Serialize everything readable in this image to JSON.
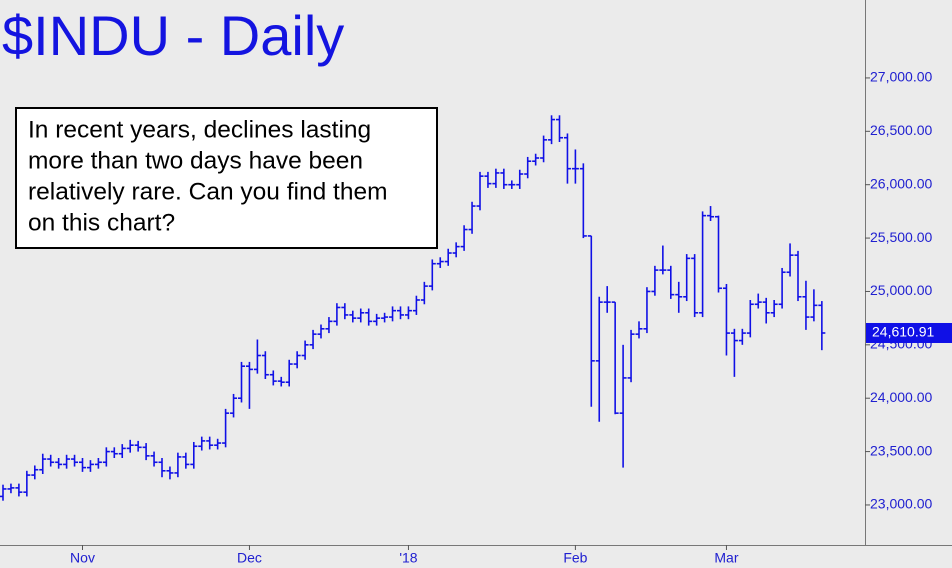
{
  "chart_data": {
    "type": "ohlc",
    "title": "$INDU - Daily",
    "annotation_lines": [
      "In recent years, declines lasting",
      "more than two days have been",
      "relatively rare. Can you find them",
      "on this chart?"
    ],
    "color": "#1010e6",
    "categories": [
      null,
      null,
      null,
      null,
      null,
      null,
      null,
      null,
      null,
      null,
      "Nov",
      null,
      null,
      null,
      null,
      null,
      null,
      null,
      null,
      null,
      null,
      null,
      null,
      null,
      null,
      null,
      null,
      null,
      null,
      null,
      null,
      "Dec",
      null,
      null,
      null,
      null,
      null,
      null,
      null,
      null,
      null,
      null,
      null,
      null,
      null,
      null,
      null,
      null,
      null,
      null,
      null,
      "'18",
      null,
      null,
      null,
      null,
      null,
      null,
      null,
      null,
      null,
      null,
      null,
      null,
      null,
      null,
      null,
      null,
      null,
      null,
      null,
      null,
      "Feb",
      null,
      null,
      null,
      null,
      null,
      null,
      null,
      null,
      null,
      null,
      null,
      null,
      null,
      null,
      null,
      null,
      null,
      null,
      "Mar",
      null,
      null,
      null,
      null,
      null,
      null,
      null,
      null,
      null,
      null,
      null,
      null
    ],
    "open": [
      23080,
      23150,
      23160,
      23120,
      23280,
      23330,
      23430,
      23400,
      23380,
      23430,
      23400,
      23350,
      23380,
      23400,
      23500,
      23480,
      23530,
      23560,
      23540,
      23460,
      23400,
      23320,
      23300,
      23450,
      23380,
      23550,
      23600,
      23560,
      23580,
      23860,
      24000,
      24300,
      24270,
      24400,
      24220,
      24160,
      24150,
      24320,
      24400,
      24500,
      24600,
      24650,
      24720,
      24850,
      24780,
      24750,
      24800,
      24720,
      24750,
      24760,
      24820,
      24780,
      24820,
      24920,
      25050,
      25260,
      25280,
      25360,
      25420,
      25580,
      25800,
      26080,
      26010,
      26110,
      26000,
      26000,
      26100,
      26220,
      26250,
      26420,
      26610,
      26440,
      26150,
      26150,
      25520,
      24350,
      24900,
      24900,
      23860,
      24190,
      24600,
      24650,
      25000,
      25200,
      25200,
      24970,
      24950,
      25310,
      24800,
      25710,
      25700,
      25030,
      24610,
      24540,
      24610,
      24880,
      24900,
      24800,
      24880,
      25180,
      25340,
      24950,
      24760,
      24870
    ],
    "high": [
      23190,
      23200,
      23200,
      23320,
      23370,
      23480,
      23470,
      23440,
      23470,
      23470,
      23440,
      23420,
      23440,
      23540,
      23540,
      23570,
      23610,
      23600,
      23580,
      23500,
      23440,
      23360,
      23490,
      23490,
      23590,
      23640,
      23640,
      23620,
      23900,
      24040,
      24340,
      24340,
      24550,
      24440,
      24260,
      24200,
      24360,
      24440,
      24540,
      24640,
      24690,
      24760,
      24890,
      24890,
      24820,
      24840,
      24840,
      24790,
      24800,
      24860,
      24860,
      24860,
      24960,
      25090,
      25300,
      25320,
      25400,
      25460,
      25620,
      25840,
      26120,
      26120,
      26150,
      26150,
      26040,
      26140,
      26260,
      26290,
      26460,
      26650,
      26650,
      26480,
      26330,
      26200,
      25520,
      24950,
      25050,
      24900,
      24500,
      24640,
      24720,
      25040,
      25240,
      25430,
      25240,
      25090,
      25350,
      25350,
      25750,
      25800,
      25710,
      25070,
      24650,
      24650,
      24920,
      24980,
      24940,
      24920,
      25220,
      25450,
      25380,
      25100,
      25020,
      24910
    ],
    "low": [
      23040,
      23110,
      23080,
      23080,
      23240,
      23290,
      23360,
      23340,
      23340,
      23360,
      23310,
      23310,
      23340,
      23360,
      23440,
      23440,
      23490,
      23500,
      23420,
      23360,
      23260,
      23240,
      23260,
      23340,
      23340,
      23510,
      23520,
      23520,
      23540,
      23820,
      23960,
      23900,
      24230,
      24180,
      24120,
      24110,
      24110,
      24280,
      24360,
      24460,
      24560,
      24610,
      24680,
      24740,
      24710,
      24710,
      24680,
      24680,
      24710,
      24720,
      24740,
      24740,
      24780,
      24880,
      25010,
      25220,
      25240,
      25320,
      25380,
      25540,
      25760,
      25970,
      25970,
      25960,
      25960,
      25960,
      26060,
      26180,
      26210,
      26380,
      26400,
      26010,
      26010,
      25500,
      23920,
      23780,
      24800,
      23850,
      23350,
      24150,
      24560,
      24610,
      24960,
      25160,
      24930,
      24800,
      24910,
      24760,
      24760,
      25660,
      24990,
      24400,
      24200,
      24500,
      24570,
      24840,
      24700,
      24760,
      24840,
      25140,
      24910,
      24640,
      24720,
      24450
    ],
    "close": [
      23150,
      23160,
      23120,
      23280,
      23330,
      23430,
      23400,
      23380,
      23430,
      23400,
      23350,
      23380,
      23400,
      23500,
      23480,
      23530,
      23560,
      23540,
      23460,
      23400,
      23320,
      23300,
      23450,
      23380,
      23550,
      23600,
      23560,
      23580,
      23860,
      24000,
      24300,
      24270,
      24400,
      24220,
      24160,
      24150,
      24320,
      24400,
      24500,
      24600,
      24650,
      24720,
      24850,
      24780,
      24750,
      24800,
      24720,
      24750,
      24760,
      24820,
      24780,
      24820,
      24920,
      25050,
      25260,
      25280,
      25360,
      25420,
      25580,
      25800,
      26080,
      26010,
      26110,
      26000,
      26000,
      26100,
      26220,
      26250,
      26420,
      26610,
      26440,
      26150,
      26150,
      25520,
      24350,
      24900,
      24900,
      23860,
      24190,
      24600,
      24650,
      25000,
      25200,
      25200,
      24970,
      24950,
      25310,
      24800,
      25710,
      25700,
      25030,
      24610,
      24540,
      24610,
      24880,
      24900,
      24800,
      24880,
      25180,
      25340,
      24950,
      24760,
      24870,
      24610.91
    ],
    "last_price_label": "24,610.91",
    "ylim": [
      22625,
      27730
    ],
    "yticks": [
      {
        "value": 23000,
        "label": "23,000.00"
      },
      {
        "value": 23500,
        "label": "23,500.00"
      },
      {
        "value": 24000,
        "label": "24,000.00"
      },
      {
        "value": 24500,
        "label": "24,500.00"
      },
      {
        "value": 25000,
        "label": "25,000.00"
      },
      {
        "value": 25500,
        "label": "25,500.00"
      },
      {
        "value": 26000,
        "label": "26,000.00"
      },
      {
        "value": 26500,
        "label": "26,500.00"
      },
      {
        "value": 27000,
        "label": "27,000.00"
      }
    ],
    "grid": false
  }
}
